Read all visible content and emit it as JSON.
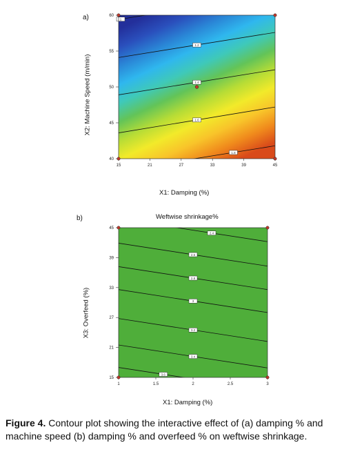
{
  "figure": {
    "caption_label": "Figure 4.",
    "caption_text": "Contour plot showing the interactive effect of (a) damping % and machine speed (b) damping % and overfeed % on weftwise shrinkage."
  },
  "colors": {
    "green_fill": "#4fae3a",
    "contour_line": "#111111",
    "design_point": "#c0392b",
    "gradient_stops": [
      "#d94a1a",
      "#f08a1c",
      "#f8c42a",
      "#f2ea2a",
      "#b6dc36",
      "#63c458",
      "#3fc9b8",
      "#2fb7ee",
      "#2a86d6",
      "#2a4fbc",
      "#232f9b"
    ]
  },
  "chart_data": [
    {
      "panel_label": "a)",
      "type": "heatmap",
      "title": "",
      "xlabel": "X1: Damping (%)",
      "ylabel": "X2: Machine Speed (m/min)",
      "xlim": [
        15,
        45
      ],
      "ylim": [
        40,
        60
      ],
      "xticks": [
        "15",
        "21",
        "27",
        "33",
        "39",
        "45"
      ],
      "yticks": [
        "40",
        "45",
        "50",
        "55",
        "60"
      ],
      "contours": [
        {
          "y_at_x15": 43.6,
          "y_at_x45": 47.2,
          "label": "1.6",
          "label_x": 30
        },
        {
          "y_at_x15": 48.9,
          "y_at_x45": 52.4,
          "label": "1.4",
          "label_x": 30
        },
        {
          "y_at_x15": 54.1,
          "y_at_x45": 57.6,
          "label": "1.2",
          "label_x": 30
        },
        {
          "y_at_x15": 59.4,
          "y_at_x45": 62.9,
          "label": "1",
          "label_x": 15.4
        },
        {
          "y_at_x15": 38.3,
          "y_at_x45": 41.8,
          "label": "1.8",
          "label_x": 37
        }
      ],
      "design_points": [
        {
          "x": 15,
          "y": 60
        },
        {
          "x": 45,
          "y": 60
        },
        {
          "x": 15,
          "y": 40
        },
        {
          "x": 45,
          "y": 40
        }
      ],
      "center_point": {
        "x": 30,
        "y": 50
      }
    },
    {
      "panel_label": "b)",
      "type": "heatmap",
      "title": "Weftwise shrinkage%",
      "xlabel": "X1: Damping (%)",
      "ylabel": "X3: Overfeed (%)",
      "xlim": [
        1,
        3
      ],
      "ylim": [
        15,
        45
      ],
      "xticks": [
        "1",
        "1.5",
        "2",
        "2.5",
        "3"
      ],
      "yticks": [
        "15",
        "21",
        "27",
        "33",
        "39",
        "45"
      ],
      "contours": [
        {
          "y_at_x1": 46.8,
          "y_at_x3": 42.2,
          "label": "2.4",
          "label_x": 2.25
        },
        {
          "y_at_x1": 41.9,
          "y_at_x3": 37.3,
          "label": "2.6",
          "label_x": 2.0
        },
        {
          "y_at_x1": 37.2,
          "y_at_x3": 32.6,
          "label": "2.8",
          "label_x": 2.0
        },
        {
          "y_at_x1": 32.6,
          "y_at_x3": 28.0,
          "label": "3",
          "label_x": 2.0
        },
        {
          "y_at_x1": 26.8,
          "y_at_x3": 22.2,
          "label": "3.2",
          "label_x": 2.0
        },
        {
          "y_at_x1": 21.5,
          "y_at_x3": 16.9,
          "label": "3.4",
          "label_x": 2.0
        },
        {
          "y_at_x1": 17.0,
          "y_at_x3": 12.4,
          "label": "3.6",
          "label_x": 1.6
        }
      ],
      "design_points": [
        {
          "x": 1,
          "y": 45
        },
        {
          "x": 3,
          "y": 45
        },
        {
          "x": 1,
          "y": 15
        },
        {
          "x": 3,
          "y": 15
        }
      ]
    }
  ]
}
